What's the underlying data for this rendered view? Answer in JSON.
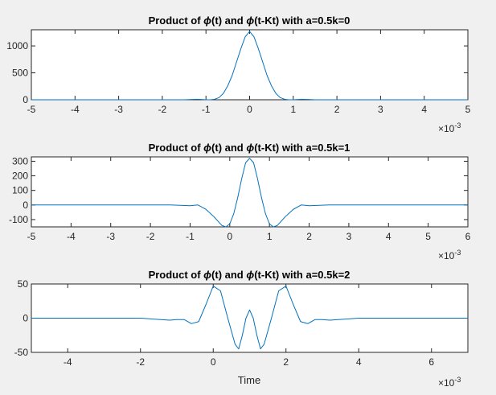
{
  "figure": {
    "background": "#f0f0f0",
    "axes_color": "#262626",
    "line_color": "#0072bd"
  },
  "chart_data": [
    {
      "type": "line",
      "title_parts": [
        "Product of ",
        "ϕ",
        "(t) and ",
        "ϕ",
        "(t-Kt) with a=0.5k=0"
      ],
      "xlabel": "",
      "ylabel": "",
      "xlim": [
        -5,
        5
      ],
      "ylim": [
        0,
        1300
      ],
      "x_exponent": "×10",
      "x_exponent_power": "-3",
      "xticks": [
        -5,
        -4,
        -3,
        -2,
        -1,
        0,
        1,
        2,
        3,
        4,
        5
      ],
      "yticks": [
        0,
        500,
        1000
      ],
      "grid": false,
      "series": [
        {
          "x": [
            -5,
            -1.5,
            -1.2,
            -1.0,
            -0.9,
            -0.8,
            -0.7,
            -0.6,
            -0.5,
            -0.4,
            -0.3,
            -0.2,
            -0.1,
            0,
            0.1,
            0.2,
            0.3,
            0.4,
            0.5,
            0.6,
            0.7,
            0.8,
            0.9,
            1.0,
            1.2,
            1.5,
            5
          ],
          "y": [
            0,
            0,
            10,
            0,
            0,
            10,
            40,
            120,
            260,
            450,
            700,
            950,
            1170,
            1270,
            1170,
            950,
            700,
            450,
            260,
            120,
            40,
            10,
            0,
            0,
            10,
            0,
            0
          ]
        }
      ]
    },
    {
      "type": "line",
      "title_parts": [
        "Product of ",
        "ϕ",
        "(t) and ",
        "ϕ",
        "(t-Kt) with a=0.5k=1"
      ],
      "xlabel": "",
      "ylabel": "",
      "xlim": [
        -5,
        6
      ],
      "ylim": [
        -150,
        330
      ],
      "x_exponent": "×10",
      "x_exponent_power": "-3",
      "xticks": [
        -5,
        -4,
        -3,
        -2,
        -1,
        0,
        1,
        2,
        3,
        4,
        5,
        6
      ],
      "yticks": [
        -100,
        0,
        100,
        200,
        300
      ],
      "grid": false,
      "series": [
        {
          "x": [
            -5,
            -1.5,
            -1.0,
            -0.8,
            -0.6,
            -0.4,
            -0.2,
            -0.1,
            0,
            0.1,
            0.2,
            0.3,
            0.4,
            0.5,
            0.6,
            0.7,
            0.8,
            0.9,
            1.0,
            1.1,
            1.2,
            1.4,
            1.6,
            1.8,
            2.0,
            2.5,
            6
          ],
          "y": [
            0,
            0,
            -5,
            0,
            -30,
            -80,
            -140,
            -150,
            -130,
            -60,
            50,
            180,
            290,
            320,
            290,
            180,
            50,
            -60,
            -130,
            -150,
            -140,
            -80,
            -30,
            0,
            -5,
            0,
            0
          ]
        }
      ]
    },
    {
      "type": "line",
      "title_parts": [
        "Product of ",
        "ϕ",
        "(t) and ",
        "ϕ",
        "(t-Kt) with a=0.5k=2"
      ],
      "xlabel": "Time",
      "ylabel": "",
      "xlim": [
        -5,
        7
      ],
      "ylim": [
        -50,
        50
      ],
      "x_exponent": "×10",
      "x_exponent_power": "-3",
      "xticks": [
        -4,
        -2,
        0,
        2,
        4,
        6
      ],
      "yticks": [
        -50,
        0,
        50
      ],
      "grid": false,
      "series": [
        {
          "x": [
            -5,
            -2.0,
            -1.2,
            -1.0,
            -0.8,
            -0.6,
            -0.4,
            -0.2,
            0,
            0.2,
            0.4,
            0.6,
            0.7,
            0.8,
            0.9,
            1.0,
            1.1,
            1.2,
            1.3,
            1.4,
            1.6,
            1.8,
            2.0,
            2.2,
            2.4,
            2.6,
            2.8,
            3.0,
            3.2,
            4.0,
            7
          ],
          "y": [
            0,
            0,
            -3,
            -2,
            -2,
            -8,
            -5,
            20,
            47,
            40,
            0,
            -38,
            -45,
            -25,
            0,
            12,
            0,
            -25,
            -45,
            -38,
            0,
            40,
            47,
            20,
            -5,
            -8,
            -2,
            -2,
            -3,
            0,
            0
          ]
        }
      ]
    }
  ]
}
